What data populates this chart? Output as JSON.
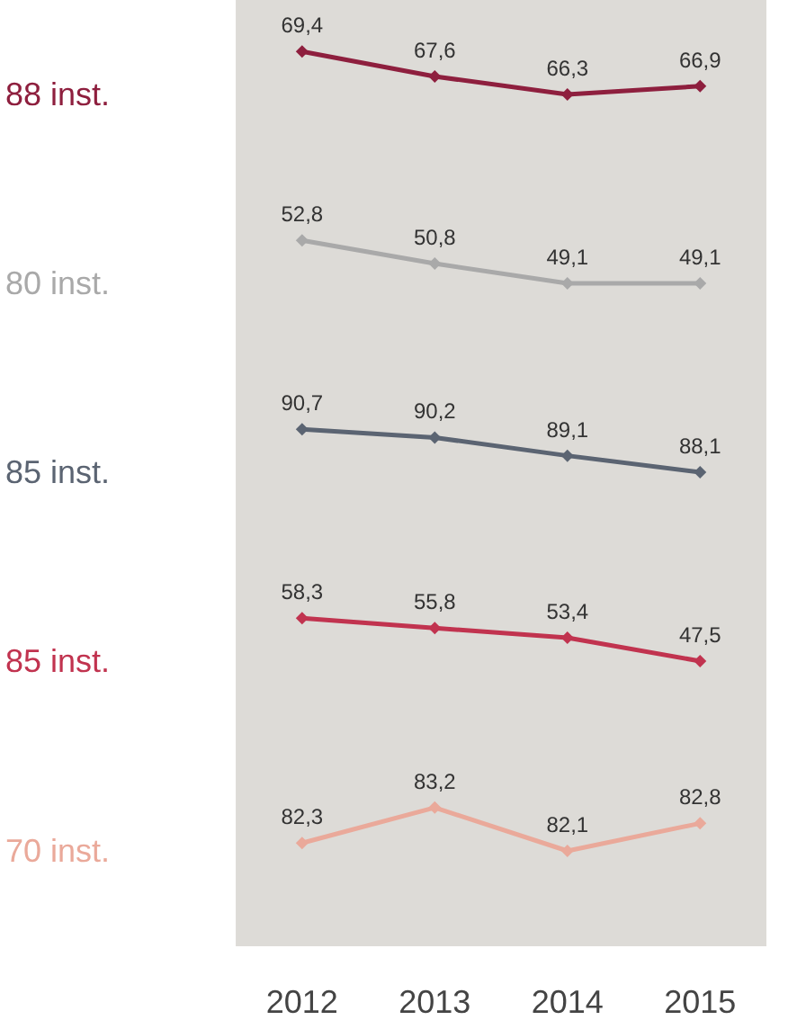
{
  "chart_data": [
    {
      "type": "line",
      "categories": [
        "2012",
        "2013",
        "2014",
        "2015"
      ],
      "marker": "diamond",
      "tick_labels": false,
      "series": [
        {
          "name": "88 inst.",
          "color": "#8e1f3e",
          "values": [
            69.4,
            67.6,
            66.3,
            66.9
          ],
          "value_labels": [
            "69,4",
            "67,6",
            "66,3",
            "66,9"
          ]
        }
      ]
    },
    {
      "type": "line",
      "categories": [
        "2012",
        "2013",
        "2014",
        "2015"
      ],
      "marker": "diamond",
      "tick_labels": false,
      "series": [
        {
          "name": "80 inst.",
          "color": "#a9a9a9",
          "values": [
            52.8,
            50.8,
            49.1,
            49.1
          ],
          "value_labels": [
            "52,8",
            "50,8",
            "49,1",
            "49,1"
          ]
        }
      ]
    },
    {
      "type": "line",
      "categories": [
        "2012",
        "2013",
        "2014",
        "2015"
      ],
      "marker": "diamond",
      "tick_labels": false,
      "series": [
        {
          "name": "85 inst.",
          "color": "#5b6472",
          "values": [
            90.7,
            90.2,
            89.1,
            88.1
          ],
          "value_labels": [
            "90,7",
            "90,2",
            "89,1",
            "88,1"
          ]
        }
      ]
    },
    {
      "type": "line",
      "categories": [
        "2012",
        "2013",
        "2014",
        "2015"
      ],
      "marker": "diamond",
      "tick_labels": false,
      "series": [
        {
          "name": "85 inst.",
          "color": "#c1334f",
          "values": [
            58.3,
            55.8,
            53.4,
            47.5
          ],
          "value_labels": [
            "58,3",
            "55,8",
            "53,4",
            "47,5"
          ]
        }
      ]
    },
    {
      "type": "line",
      "categories": [
        "2012",
        "2013",
        "2014",
        "2015"
      ],
      "marker": "diamond",
      "tick_labels": "x",
      "series": [
        {
          "name": "70 inst.",
          "color": "#eaa99a",
          "values": [
            82.3,
            83.2,
            82.1,
            82.8
          ],
          "value_labels": [
            "82,3",
            "83,2",
            "82,1",
            "82,8"
          ]
        }
      ]
    }
  ]
}
